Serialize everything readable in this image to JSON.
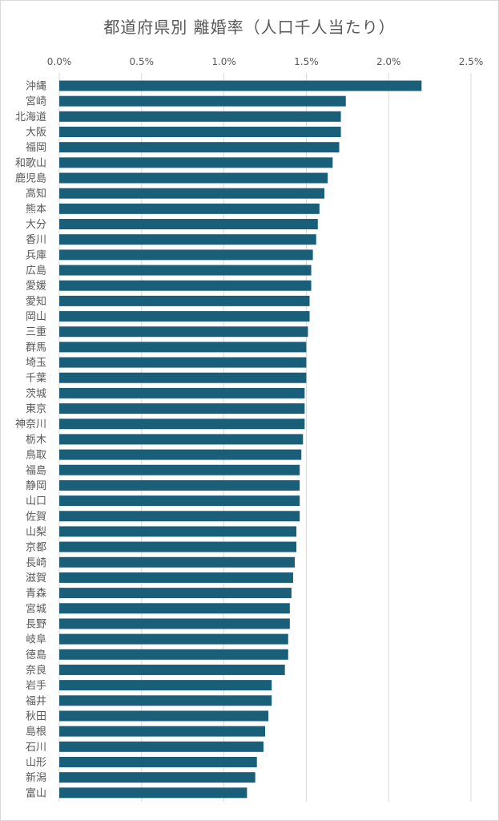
{
  "chart_data": {
    "type": "bar",
    "orientation": "horizontal",
    "title": "都道府県別 離婚率（人口千人当たり）",
    "xlim": [
      0,
      0.025
    ],
    "xticks": [
      "0.0%",
      "0.5%",
      "1.0%",
      "1.5%",
      "2.0%",
      "2.5%"
    ],
    "x_axis_position": "top",
    "grid": true,
    "bar_color": "#1a5f7a",
    "categories": [
      "沖縄",
      "宮崎",
      "北海道",
      "大阪",
      "福岡",
      "和歌山",
      "鹿児島",
      "高知",
      "熊本",
      "大分",
      "香川",
      "兵庫",
      "広島",
      "愛媛",
      "愛知",
      "岡山",
      "三重",
      "群馬",
      "埼玉",
      "千葉",
      "茨城",
      "東京",
      "神奈川",
      "栃木",
      "鳥取",
      "福島",
      "静岡",
      "山口",
      "佐賀",
      "山梨",
      "京都",
      "長崎",
      "滋賀",
      "青森",
      "宮城",
      "長野",
      "岐阜",
      "徳島",
      "奈良",
      "岩手",
      "福井",
      "秋田",
      "島根",
      "石川",
      "山形",
      "新潟",
      "富山"
    ],
    "values": [
      0.022,
      0.0174,
      0.0171,
      0.0171,
      0.017,
      0.0166,
      0.0163,
      0.0161,
      0.0158,
      0.0157,
      0.0156,
      0.0154,
      0.0153,
      0.0153,
      0.0152,
      0.0152,
      0.0151,
      0.015,
      0.015,
      0.015,
      0.0149,
      0.0149,
      0.0149,
      0.0148,
      0.0147,
      0.0146,
      0.0146,
      0.0146,
      0.0146,
      0.0144,
      0.0144,
      0.0143,
      0.0142,
      0.0141,
      0.014,
      0.014,
      0.0139,
      0.0139,
      0.0137,
      0.0129,
      0.0129,
      0.0127,
      0.0125,
      0.0124,
      0.012,
      0.0119,
      0.0114
    ]
  }
}
